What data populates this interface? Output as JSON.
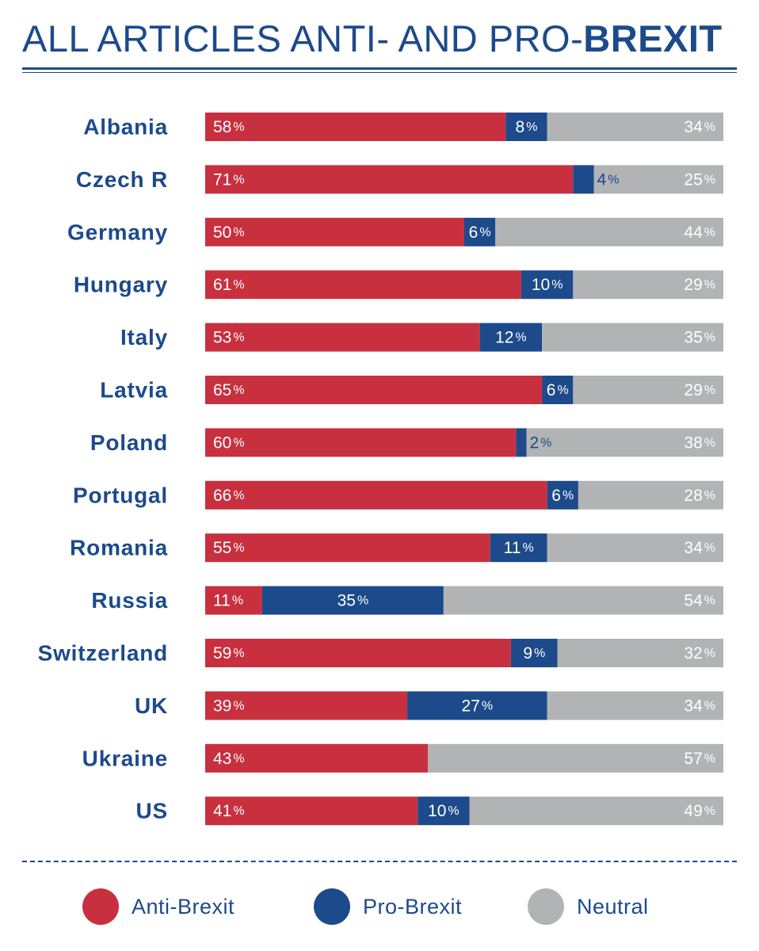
{
  "title": {
    "regular": "ALL ARTICLES ANTI- AND PRO-",
    "bold": "BREXIT"
  },
  "colors": {
    "anti": "#c8303f",
    "pro": "#1c4a8b",
    "neutral": "#b2b3b5",
    "text_dark": "#1c4a8b"
  },
  "legend": {
    "anti": "Anti-Brexit",
    "pro": "Pro-Brexit",
    "neutral": "Neutral"
  },
  "chart_data": {
    "type": "bar",
    "orientation": "horizontal",
    "stacked": true,
    "normalized_to": 100,
    "value_suffix": "%",
    "title": "ALL ARTICLES ANTI- AND PRO-BREXIT",
    "categories": [
      "Albania",
      "Czech R",
      "Germany",
      "Hungary",
      "Italy",
      "Latvia",
      "Poland",
      "Portugal",
      "Romania",
      "Russia",
      "Switzerland",
      "UK",
      "Ukraine",
      "US"
    ],
    "series": [
      {
        "name": "Anti-Brexit",
        "key": "anti",
        "values": [
          58,
          71,
          50,
          61,
          53,
          65,
          60,
          66,
          55,
          11,
          59,
          39,
          43,
          41
        ]
      },
      {
        "name": "Pro-Brexit",
        "key": "pro",
        "values": [
          8,
          4,
          6,
          10,
          12,
          6,
          2,
          6,
          11,
          35,
          9,
          27,
          0,
          10
        ]
      },
      {
        "name": "Neutral",
        "key": "neutral",
        "values": [
          34,
          25,
          44,
          29,
          35,
          29,
          38,
          28,
          34,
          54,
          32,
          34,
          57,
          49
        ]
      }
    ],
    "legend_position": "bottom"
  }
}
